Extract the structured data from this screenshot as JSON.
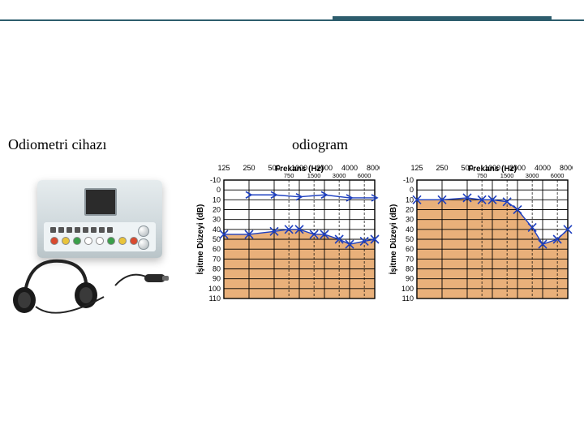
{
  "labels": {
    "device": "Odiometri cihazı",
    "chart": "odiogram"
  },
  "chart_common": {
    "x_title": "Frekans (Hz)",
    "y_title": "İşitme Düzeyi (dB)",
    "x_ticks_major": [
      125,
      250,
      500,
      1000,
      2000,
      4000,
      8000
    ],
    "x_ticks_minor": [
      750,
      1500,
      3000,
      6000
    ],
    "y_ticks": [
      -10,
      0,
      10,
      20,
      30,
      40,
      50,
      60,
      70,
      80,
      90,
      100,
      110
    ],
    "y_lim": [
      -10,
      110
    ],
    "grid_color": "#000000",
    "plot_bg": "#ffffff",
    "fill_color": "#e9b07a",
    "fill_opacity": 1.0,
    "line_color_blue": "#1d3fbf",
    "line_color_x": "#1d3fbf",
    "title_fontsize": 10,
    "tick_fontsize": 9,
    "marker_size": 5,
    "line_width": 1.4
  },
  "chart1": {
    "arrow_series": {
      "freq": [
        250,
        500,
        1000,
        2000,
        4000,
        8000
      ],
      "db": [
        5,
        5,
        7,
        5,
        8,
        8
      ]
    },
    "x_series": {
      "freq": [
        125,
        250,
        500,
        750,
        1000,
        1500,
        2000,
        3000,
        4000,
        6000,
        8000
      ],
      "db": [
        45,
        45,
        42,
        40,
        40,
        45,
        45,
        50,
        55,
        52,
        50
      ]
    }
  },
  "chart2": {
    "x_series": {
      "freq": [
        125,
        250,
        500,
        750,
        1000,
        1500,
        2000,
        3000,
        4000,
        6000,
        8000
      ],
      "db": [
        10,
        10,
        8,
        10,
        10,
        12,
        20,
        38,
        55,
        50,
        40
      ]
    }
  },
  "device_panel": {
    "dot_colors": [
      "#d94a2f",
      "#e9c43a",
      "#3a9f4a",
      "#ffffff",
      "#ffffff",
      "#3a9f4a",
      "#e9c43a",
      "#d94a2f"
    ]
  }
}
